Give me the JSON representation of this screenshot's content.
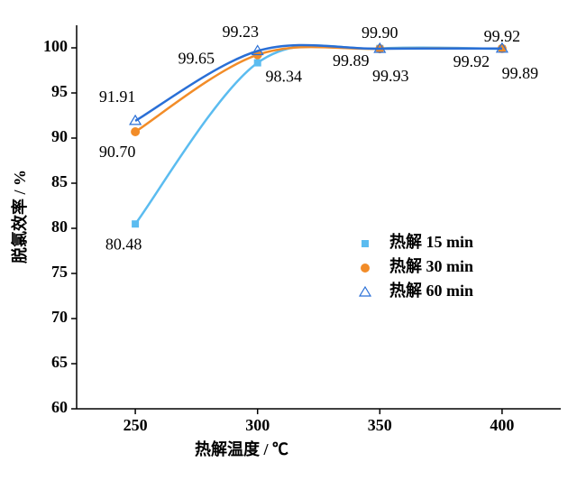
{
  "chart_data": {
    "type": "line",
    "xlabel": "热解温度 / ℃",
    "ylabel": "脱氯效率 / %",
    "x": [
      250,
      300,
      350,
      400
    ],
    "series": [
      {
        "name": "热解 15 min",
        "color": "#5bbcf0",
        "marker": "square",
        "values": [
          80.48,
          98.34,
          99.93,
          99.89
        ],
        "value_labels": [
          "80.48",
          "98.34",
          "99.93",
          "99.89"
        ]
      },
      {
        "name": "热解 30 min",
        "color": "#f28c28",
        "marker": "circle",
        "values": [
          90.7,
          99.23,
          99.89,
          99.92
        ],
        "value_labels": [
          "90.70",
          "99.23",
          "99.89",
          "99.92"
        ]
      },
      {
        "name": "热解 60 min",
        "color": "#2a6fd6",
        "marker": "triangle",
        "values": [
          91.91,
          99.65,
          99.9,
          99.92
        ],
        "value_labels": [
          "91.91",
          "99.65",
          "99.90",
          "99.92"
        ]
      }
    ],
    "xlim": [
      226,
      424
    ],
    "xticks": [
      250,
      300,
      350,
      400
    ],
    "ylim": [
      60,
      102.5
    ],
    "yticks": [
      60,
      65,
      70,
      75,
      80,
      85,
      90,
      95,
      100
    ],
    "grid": false
  }
}
